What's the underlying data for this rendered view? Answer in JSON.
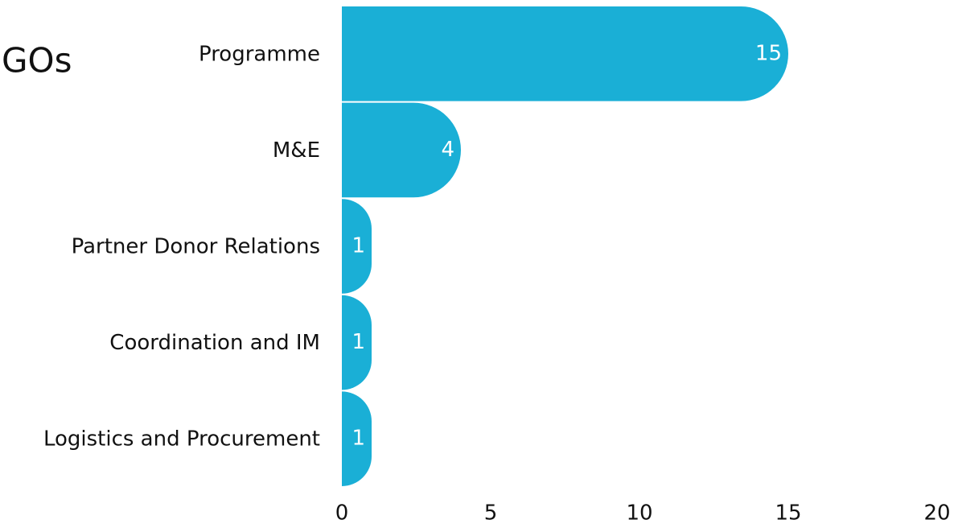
{
  "chart_data": {
    "type": "bar",
    "orientation": "horizontal",
    "title": "GOs",
    "categories": [
      "Programme",
      "M&E",
      "Partner Donor Relations",
      "Coordination and IM",
      "Logistics and Procurement"
    ],
    "values": [
      15,
      4,
      1,
      1,
      1
    ],
    "color": "#1aafd6",
    "xlim": [
      0,
      20
    ],
    "xticks": [
      0,
      5,
      10,
      15,
      20
    ],
    "grid": false
  }
}
